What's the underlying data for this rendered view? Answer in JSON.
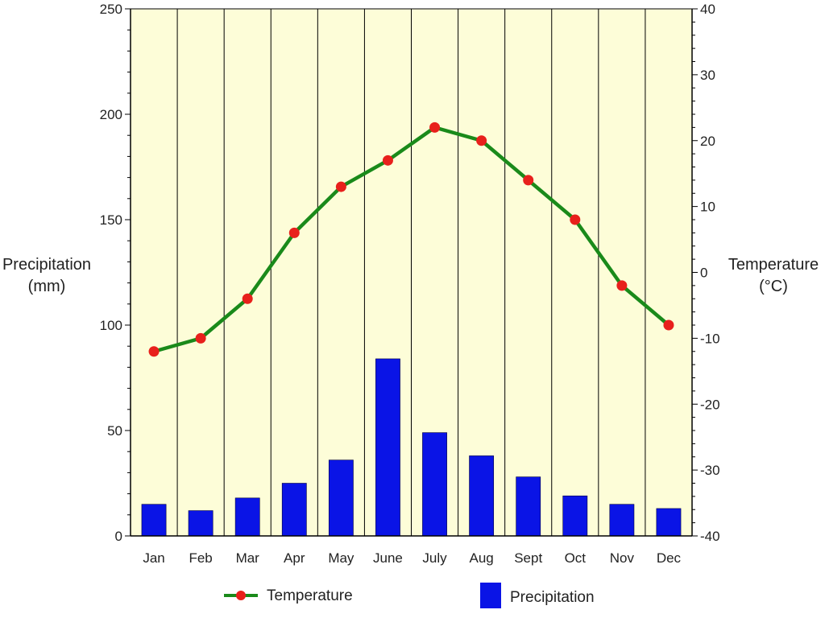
{
  "chart_data": {
    "type": "bar+line",
    "categories": [
      "Jan",
      "Feb",
      "Mar",
      "Apr",
      "May",
      "June",
      "July",
      "Aug",
      "Sept",
      "Oct",
      "Nov",
      "Dec"
    ],
    "series": [
      {
        "name": "Precipitation",
        "type": "bar",
        "axis": "left",
        "color": "#0a14e6",
        "values": [
          15,
          12,
          18,
          25,
          36,
          84,
          49,
          38,
          28,
          19,
          15,
          13
        ]
      },
      {
        "name": "Temperature",
        "type": "line",
        "axis": "right",
        "color": "#1a8a1a",
        "marker_color": "#e8201c",
        "values": [
          -12,
          -10,
          -4,
          6,
          13,
          17,
          22,
          20,
          14,
          8,
          -2,
          -8
        ]
      }
    ],
    "ylabel_left": [
      "Precipitation",
      "(mm)"
    ],
    "ylabel_right": [
      "Temperature",
      "(°C)"
    ],
    "ylim_left": [
      0,
      250
    ],
    "ylim_right": [
      -40,
      40
    ],
    "yticks_left": [
      0,
      50,
      100,
      150,
      200,
      250
    ],
    "yticks_right": [
      -40,
      -30,
      -20,
      -10,
      0,
      10,
      20,
      30,
      40
    ],
    "grid": "vertical",
    "background": "#fdfdd8",
    "legend": {
      "placement": "bottom",
      "items": [
        "Temperature",
        "Precipitation"
      ]
    }
  }
}
